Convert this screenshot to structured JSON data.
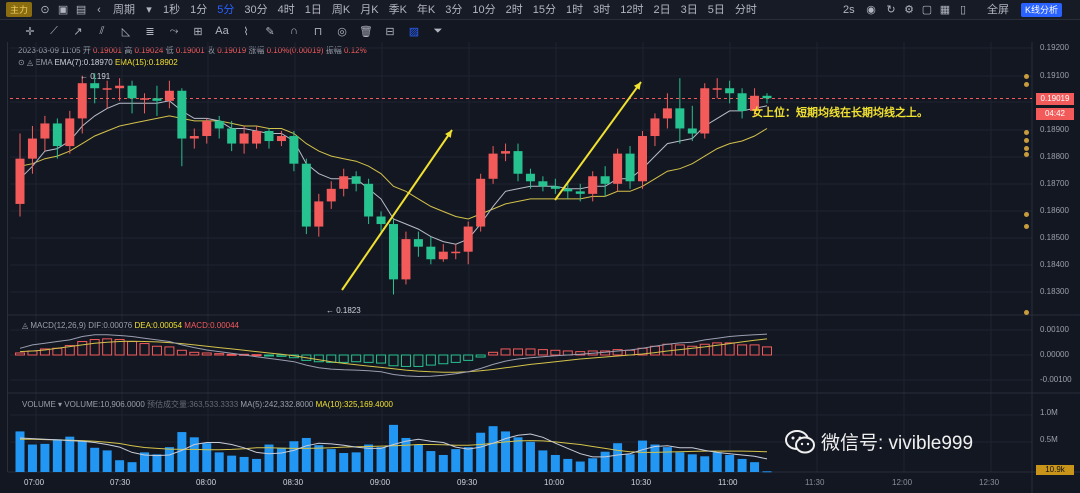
{
  "toolbar": {
    "main_badge": "主力",
    "period_label": "周期",
    "periods": [
      "1秒",
      "1分",
      "5分",
      "30分",
      "4时",
      "1日",
      "周K",
      "月K",
      "季K",
      "年K",
      "3分",
      "10分",
      "2时",
      "15分",
      "1时",
      "3时",
      "12时",
      "2日",
      "3日",
      "5日",
      "分时"
    ],
    "active_period": "5分",
    "refresh": "2s",
    "fullscreen": "全屏",
    "kline_button": "K线分析"
  },
  "info": {
    "date": "2023-03-09 11:05",
    "open_label": "开",
    "open": "0.19001",
    "high_label": "高",
    "high": "0.19024",
    "low_label": "低",
    "low": "0.19001",
    "close_label": "收",
    "close": "0.19019",
    "change_label": "涨幅",
    "change": "0.10%(0.00019)",
    "amp_label": "振幅",
    "amp": "0.12%"
  },
  "ema": {
    "label": "EMA",
    "ema7": "EMA(7):0.18970",
    "ema15": "EMA(15):0.18902"
  },
  "macd": {
    "label": "MACD(12,26,9)",
    "dif": "DIF:0.00076",
    "dea": "DEA:0.00054",
    "macd": "MACD:0.00044"
  },
  "volume": {
    "label": "VOLUME",
    "vol": "VOLUME:10,906.0000",
    "pred": "预估成交量:363,533.3333",
    "ma5": "MA(5):242,332.8000",
    "ma10": "MA(10):325,169.4000"
  },
  "price_axis": [
    "0.19200",
    "0.19100",
    "0.19000",
    "0.18900",
    "0.18800",
    "0.18700",
    "0.18600",
    "0.18500",
    "0.18400",
    "0.18300"
  ],
  "macd_axis": [
    "0.00100",
    "0.00000",
    "-0.00100"
  ],
  "vol_axis": [
    "1.0M",
    "0.5M",
    "10.9k"
  ],
  "current_price": "0.19019",
  "countdown": "04:42",
  "time_axis": [
    "07:00",
    "07:30",
    "08:00",
    "08:30",
    "09:00",
    "09:30",
    "10:00",
    "10:30",
    "11:00",
    "11:30",
    "12:00",
    "12:30"
  ],
  "high_label": "0.191",
  "low_label": "0.1823",
  "annotation": "女上位：短期均线在长期均线之上。",
  "watermark": "微信号: vivible999",
  "chart_data": {
    "type": "candlestick",
    "price_range": [
      0.1821,
      0.1922
    ],
    "candles": [
      [
        0.186,
        0.1878,
        0.1855,
        0.1888
      ],
      [
        0.1878,
        0.1886,
        0.1872,
        0.1891
      ],
      [
        0.1886,
        0.1892,
        0.1881,
        0.1895
      ],
      [
        0.1892,
        0.1883,
        0.1878,
        0.1894
      ],
      [
        0.1883,
        0.1894,
        0.188,
        0.1897
      ],
      [
        0.1894,
        0.1908,
        0.1888,
        0.1911
      ],
      [
        0.1908,
        0.1906,
        0.19,
        0.1912
      ],
      [
        0.1906,
        0.1906,
        0.1898,
        0.1909
      ],
      [
        0.1906,
        0.1907,
        0.1901,
        0.191
      ],
      [
        0.1907,
        0.1902,
        0.1896,
        0.1909
      ],
      [
        0.1902,
        0.1902,
        0.1896,
        0.1904
      ],
      [
        0.1902,
        0.1901,
        0.1895,
        0.1907
      ],
      [
        0.1901,
        0.1905,
        0.1898,
        0.1909
      ],
      [
        0.1905,
        0.1886,
        0.1875,
        0.1906
      ],
      [
        0.1886,
        0.1887,
        0.1882,
        0.189
      ],
      [
        0.1887,
        0.1893,
        0.1884,
        0.1894
      ],
      [
        0.1893,
        0.189,
        0.1886,
        0.1895
      ],
      [
        0.189,
        0.1884,
        0.1881,
        0.1893
      ],
      [
        0.1884,
        0.1888,
        0.188,
        0.1891
      ],
      [
        0.1884,
        0.1889,
        0.1882,
        0.1891
      ],
      [
        0.1889,
        0.1885,
        0.1882,
        0.189
      ],
      [
        0.1885,
        0.1887,
        0.1883,
        0.1889
      ],
      [
        0.1887,
        0.1876,
        0.1873,
        0.1889
      ],
      [
        0.1876,
        0.1851,
        0.1848,
        0.1878
      ],
      [
        0.1851,
        0.1861,
        0.1847,
        0.1864
      ],
      [
        0.1861,
        0.1866,
        0.1858,
        0.1869
      ],
      [
        0.1866,
        0.1871,
        0.1863,
        0.1874
      ],
      [
        0.1871,
        0.1868,
        0.1865,
        0.1873
      ],
      [
        0.1868,
        0.1855,
        0.1852,
        0.187
      ],
      [
        0.1855,
        0.1852,
        0.1849,
        0.1857
      ],
      [
        0.1852,
        0.183,
        0.1824,
        0.1854
      ],
      [
        0.183,
        0.1846,
        0.1828,
        0.1849
      ],
      [
        0.1846,
        0.1843,
        0.1839,
        0.1849
      ],
      [
        0.1843,
        0.1838,
        0.1836,
        0.1847
      ],
      [
        0.1838,
        0.1841,
        0.1837,
        0.1844
      ],
      [
        0.1841,
        0.1841,
        0.1838,
        0.1844
      ],
      [
        0.1841,
        0.1851,
        0.1836,
        0.1853
      ],
      [
        0.1851,
        0.187,
        0.1849,
        0.1872
      ],
      [
        0.187,
        0.188,
        0.1868,
        0.1883
      ],
      [
        0.188,
        0.1881,
        0.1877,
        0.1884
      ],
      [
        0.1881,
        0.1872,
        0.1869,
        0.1884
      ],
      [
        0.1872,
        0.1869,
        0.1866,
        0.1874
      ],
      [
        0.1869,
        0.1867,
        0.1865,
        0.1871
      ],
      [
        0.1867,
        0.1866,
        0.1864,
        0.187
      ],
      [
        0.1866,
        0.1865,
        0.1862,
        0.1869
      ],
      [
        0.1865,
        0.1864,
        0.1861,
        0.1868
      ],
      [
        0.1864,
        0.1871,
        0.1861,
        0.1873
      ],
      [
        0.1871,
        0.1868,
        0.1863,
        0.1875
      ],
      [
        0.1868,
        0.188,
        0.1865,
        0.1882
      ],
      [
        0.188,
        0.1869,
        0.1866,
        0.1883
      ],
      [
        0.1869,
        0.1887,
        0.1866,
        0.1889
      ],
      [
        0.1887,
        0.1894,
        0.1883,
        0.1896
      ],
      [
        0.1894,
        0.1898,
        0.189,
        0.1904
      ],
      [
        0.1898,
        0.189,
        0.1884,
        0.191
      ],
      [
        0.189,
        0.1888,
        0.1885,
        0.1899
      ],
      [
        0.1888,
        0.1906,
        0.1886,
        0.1908
      ],
      [
        0.1906,
        0.1906,
        0.1902,
        0.191
      ],
      [
        0.1906,
        0.1904,
        0.19,
        0.1909
      ],
      [
        0.1904,
        0.1897,
        0.1894,
        0.1906
      ],
      [
        0.1897,
        0.1903,
        0.1895,
        0.1906
      ],
      [
        0.1903,
        0.1902,
        0.19,
        0.1904
      ]
    ],
    "ema7": [
      0.187,
      0.1875,
      0.1881,
      0.1882,
      0.1885,
      0.1891,
      0.1895,
      0.1898,
      0.19,
      0.19,
      0.19,
      0.19,
      0.1901,
      0.1897,
      0.1894,
      0.1894,
      0.1893,
      0.189,
      0.189,
      0.1889,
      0.1888,
      0.1888,
      0.1885,
      0.1876,
      0.1872,
      0.187,
      0.187,
      0.187,
      0.1866,
      0.1862,
      0.1854,
      0.1852,
      0.185,
      0.1847,
      0.1845,
      0.1844,
      0.1846,
      0.1852,
      0.1859,
      0.1865,
      0.1866,
      0.1867,
      0.1867,
      0.1867,
      0.1866,
      0.1866,
      0.1867,
      0.1867,
      0.187,
      0.187,
      0.1874,
      0.1879,
      0.1884,
      0.1885,
      0.1886,
      0.1891,
      0.1894,
      0.1897,
      0.1897,
      0.1898,
      0.1899
    ],
    "ema15": [
      0.1875,
      0.1876,
      0.1878,
      0.1879,
      0.1881,
      0.1884,
      0.1887,
      0.1889,
      0.1891,
      0.1892,
      0.1893,
      0.1894,
      0.1895,
      0.1894,
      0.1893,
      0.1893,
      0.1893,
      0.1892,
      0.1891,
      0.1891,
      0.189,
      0.189,
      0.1888,
      0.1884,
      0.1881,
      0.1879,
      0.1878,
      0.1877,
      0.1875,
      0.1872,
      0.1867,
      0.1865,
      0.1862,
      0.1859,
      0.1857,
      0.1855,
      0.1854,
      0.1856,
      0.1858,
      0.186,
      0.1861,
      0.1862,
      0.1862,
      0.1862,
      0.1862,
      0.1862,
      0.1863,
      0.1863,
      0.1865,
      0.1865,
      0.1867,
      0.187,
      0.1873,
      0.1874,
      0.1876,
      0.1879,
      0.1882,
      0.1884,
      0.1885,
      0.1887,
      0.189
    ],
    "macd_range": [
      -0.0011,
      0.0011
    ],
    "macd_hist": [
      6e-05,
      0.00012,
      0.00018,
      0.0002,
      0.00028,
      0.0004,
      0.00046,
      0.00048,
      0.00046,
      0.0004,
      0.00034,
      0.00026,
      0.00024,
      0.00014,
      8e-05,
      6e-05,
      4e-05,
      2e-05,
      2e-05,
      1e-05,
      -2e-05,
      -4e-05,
      -8e-05,
      -0.00016,
      -0.0002,
      -0.00022,
      -0.00022,
      -0.0002,
      -0.00022,
      -0.00024,
      -0.00032,
      -0.00034,
      -0.00034,
      -0.0003,
      -0.00026,
      -0.00022,
      -0.00016,
      -6e-05,
      8e-05,
      0.00018,
      0.00018,
      0.00018,
      0.00016,
      0.00014,
      0.00012,
      0.0001,
      0.00012,
      0.00012,
      0.00016,
      0.00014,
      0.0002,
      0.00026,
      0.00032,
      0.0003,
      0.00026,
      0.00032,
      0.00036,
      0.00036,
      0.0003,
      0.0003,
      0.00024
    ],
    "macd_dif": [
      0.0002,
      0.0003,
      0.00035,
      0.0004,
      0.00045,
      0.00055,
      0.0006,
      0.0006,
      0.00058,
      0.00055,
      0.0005,
      0.00045,
      0.0004,
      0.0003,
      0.00022,
      0.00015,
      0.0001,
      5e-05,
      0.0,
      -5e-05,
      -0.0001,
      -0.00015,
      -0.0002,
      -0.0003,
      -0.00038,
      -0.00042,
      -0.00044,
      -0.00045,
      -0.00047,
      -0.0005,
      -0.00058,
      -0.00062,
      -0.00064,
      -0.00063,
      -0.0006,
      -0.00056,
      -0.0005,
      -0.0004,
      -0.00028,
      -0.00018,
      -0.00012,
      -8e-05,
      -5e-05,
      -2e-05,
      0.0,
      2e-05,
      5e-05,
      8e-05,
      0.00012,
      0.00015,
      0.0002,
      0.00026,
      0.00032,
      0.00036,
      0.00038,
      0.00045,
      0.0005,
      0.00055,
      0.00058,
      0.0006,
      0.00062
    ],
    "macd_dea": [
      0.0001,
      0.00012,
      0.00015,
      0.0002,
      0.00025,
      0.0003,
      0.00035,
      0.00038,
      0.0004,
      0.00041,
      0.0004,
      0.00039,
      0.00037,
      0.00034,
      0.0003,
      0.00026,
      0.00022,
      0.00018,
      0.00014,
      0.0001,
      6e-05,
      2e-05,
      -2e-05,
      -8e-05,
      -0.00014,
      -0.0002,
      -0.00025,
      -0.00029,
      -0.00033,
      -0.00037,
      -0.00041,
      -0.00045,
      -0.00048,
      -0.0005,
      -0.00051,
      -0.00051,
      -0.0005,
      -0.00047,
      -0.00043,
      -0.00038,
      -0.00033,
      -0.00028,
      -0.00024,
      -0.0002,
      -0.00016,
      -0.00012,
      -9e-05,
      -6e-05,
      -3e-05,
      0.0,
      3e-05,
      7e-05,
      0.00012,
      0.00016,
      0.0002,
      0.00024,
      0.00029,
      0.00034,
      0.00039,
      0.00044,
      0.00048
    ],
    "vol_range": [
      0,
      1100000
    ],
    "volume": [
      620000,
      420000,
      430000,
      500000,
      540000,
      470000,
      370000,
      330000,
      180000,
      150000,
      300000,
      270000,
      380000,
      610000,
      530000,
      440000,
      300000,
      250000,
      230000,
      200000,
      420000,
      370000,
      470000,
      520000,
      410000,
      350000,
      290000,
      300000,
      420000,
      380000,
      720000,
      520000,
      420000,
      320000,
      260000,
      350000,
      380000,
      600000,
      700000,
      620000,
      530000,
      460000,
      330000,
      260000,
      200000,
      160000,
      210000,
      310000,
      440000,
      270000,
      480000,
      420000,
      380000,
      300000,
      270000,
      240000,
      300000,
      260000,
      200000,
      150000,
      11000
    ],
    "vol_ma5": [
      520000,
      510000,
      500000,
      490000,
      480000,
      470000,
      450000,
      420000,
      380000,
      300000,
      260000,
      250000,
      260000,
      330000,
      420000,
      450000,
      450000,
      420000,
      370000,
      300000,
      280000,
      290000,
      330000,
      400000,
      440000,
      430000,
      410000,
      380000,
      360000,
      360000,
      420000,
      470000,
      500000,
      470000,
      450000,
      380000,
      350000,
      380000,
      440000,
      510000,
      560000,
      580000,
      530000,
      440000,
      360000,
      280000,
      230000,
      230000,
      260000,
      280000,
      340000,
      390000,
      400000,
      370000,
      370000,
      330000,
      300000,
      280000,
      260000,
      240000,
      200000
    ],
    "vol_ma10": [
      500000,
      500000,
      495000,
      490000,
      485000,
      480000,
      470000,
      455000,
      435000,
      400000,
      375000,
      360000,
      350000,
      345000,
      345000,
      340000,
      340000,
      345000,
      355000,
      370000,
      370000,
      365000,
      360000,
      360000,
      365000,
      370000,
      380000,
      385000,
      390000,
      395000,
      400000,
      410000,
      420000,
      420000,
      415000,
      410000,
      410000,
      420000,
      440000,
      460000,
      475000,
      480000,
      475000,
      460000,
      440000,
      420000,
      390000,
      360000,
      330000,
      310000,
      300000,
      300000,
      305000,
      310000,
      315000,
      320000,
      320000,
      320000,
      320000,
      315000,
      310000
    ]
  }
}
